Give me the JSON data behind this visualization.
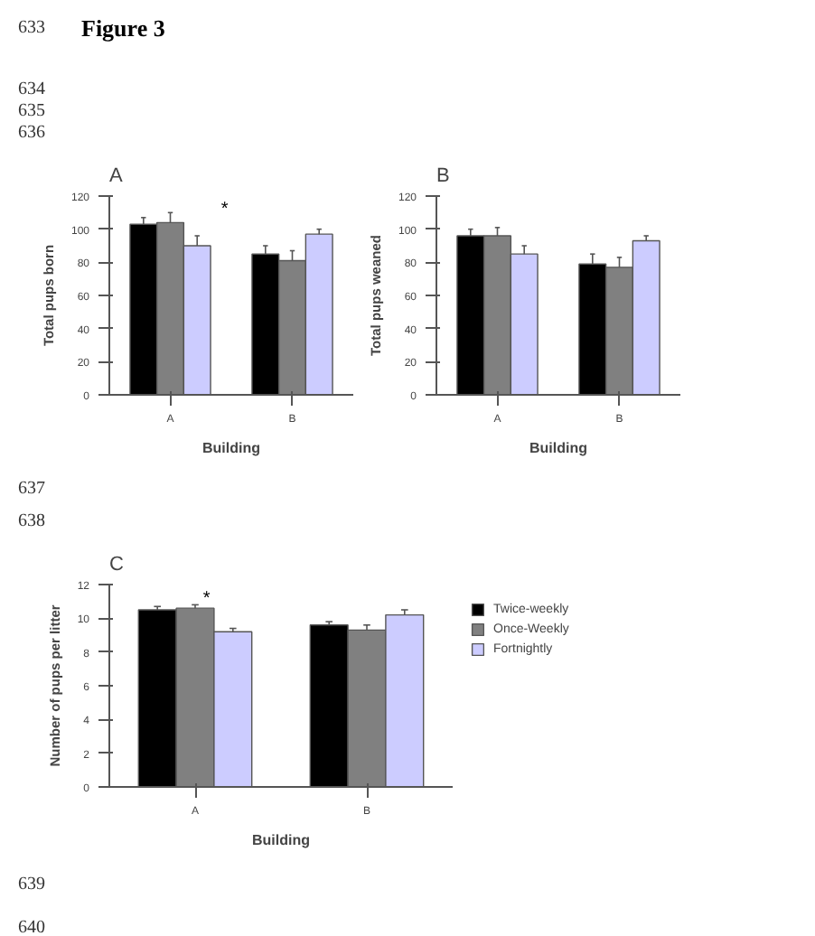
{
  "chart_data": [
    {
      "type": "bar",
      "title": "A",
      "categories": [
        "A",
        "B"
      ],
      "xlabel": "Building",
      "ylabel": "Total pups born",
      "ylim": [
        0,
        120
      ],
      "yticks": [
        0,
        20,
        40,
        60,
        80,
        100,
        120
      ],
      "grid": false,
      "legend": false,
      "annotations": [
        "Figure 3",
        "633",
        "634",
        "635",
        "636",
        "637",
        "638",
        "639",
        "640",
        "*"
      ],
      "series": [
        {
          "color": "#000000",
          "values": [
            103,
            85
          ],
          "errors": [
            4,
            5
          ]
        },
        {
          "color": "#808080",
          "values": [
            104,
            81
          ],
          "errors": [
            6,
            6
          ]
        },
        {
          "color": "#ccccff",
          "values": [
            90,
            97
          ],
          "errors": [
            6,
            3
          ]
        }
      ]
    },
    {
      "type": "bar",
      "title": "B",
      "categories": [
        "A",
        "B"
      ],
      "xlabel": "Building",
      "ylabel": "Total pups weaned",
      "ylim": [
        0,
        120
      ],
      "yticks": [
        0,
        20,
        40,
        60,
        80,
        100,
        120
      ],
      "grid": false,
      "legend": false,
      "series": [
        {
          "color": "#000000",
          "values": [
            96,
            79
          ],
          "errors": [
            4,
            6
          ]
        },
        {
          "color": "#808080",
          "values": [
            96,
            77
          ],
          "errors": [
            5,
            6
          ]
        },
        {
          "color": "#ccccff",
          "values": [
            85,
            93
          ],
          "errors": [
            5,
            3
          ]
        }
      ]
    },
    {
      "type": "bar",
      "title": "C",
      "categories": [
        "A",
        "B"
      ],
      "xlabel": "Building",
      "ylabel": "Number of pups per litter",
      "ylim": [
        0,
        12
      ],
      "yticks": [
        0,
        2,
        4,
        6,
        8,
        10,
        12
      ],
      "grid": false,
      "legend": "right",
      "annotations": [
        "*"
      ],
      "series": [
        {
          "name": "Twice-weekly",
          "color": "#000000",
          "values": [
            10.5,
            9.6
          ],
          "errors": [
            0.2,
            0.2
          ]
        },
        {
          "name": "Once-Weekly",
          "color": "#808080",
          "values": [
            10.6,
            9.3
          ],
          "errors": [
            0.2,
            0.3
          ]
        },
        {
          "name": "Fortnightly",
          "color": "#ccccff",
          "values": [
            9.2,
            10.2
          ],
          "errors": [
            0.2,
            0.3
          ]
        }
      ]
    }
  ]
}
